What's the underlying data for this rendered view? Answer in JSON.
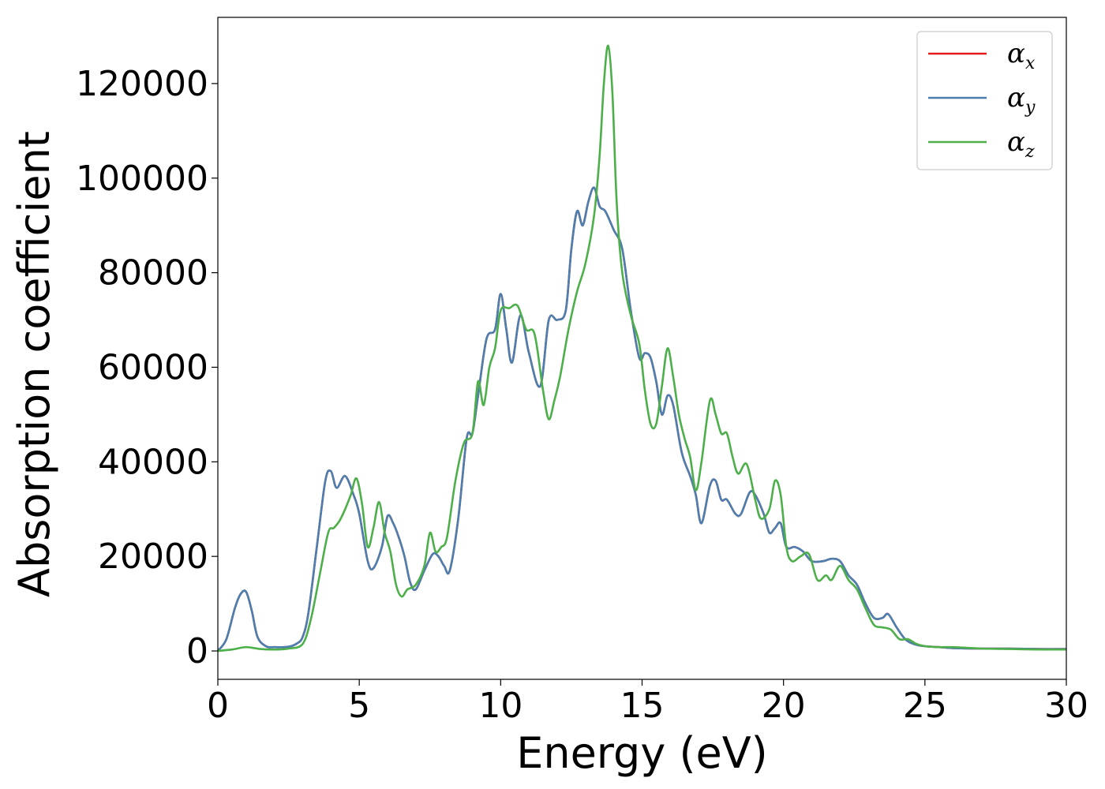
{
  "chart_data": {
    "type": "line",
    "title": "",
    "xlabel": "Energy (eV)",
    "ylabel": "Absorption coefficient",
    "xlim": [
      0,
      30
    ],
    "ylim": [
      -6000,
      134000
    ],
    "xticks": [
      0,
      5,
      10,
      15,
      20,
      25,
      30
    ],
    "yticks": [
      0,
      20000,
      40000,
      60000,
      80000,
      100000,
      120000
    ],
    "grid": false,
    "legend": {
      "placement": "top-right"
    },
    "series": [
      {
        "name": "αx",
        "symbol": "α",
        "subscript": "x",
        "color": "#e41a1c",
        "x": [
          0,
          0.3,
          0.6,
          0.8,
          1.0,
          1.2,
          1.4,
          1.7,
          2.0,
          2.5,
          2.8,
          3.0,
          3.2,
          3.5,
          3.8,
          4.0,
          4.2,
          4.5,
          4.8,
          5.0,
          5.3,
          5.5,
          5.8,
          6.0,
          6.2,
          6.4,
          6.6,
          6.8,
          7.0,
          7.3,
          7.6,
          7.8,
          8.0,
          8.2,
          8.5,
          8.8,
          9.0,
          9.2,
          9.5,
          9.8,
          10.0,
          10.2,
          10.4,
          10.7,
          11.0,
          11.4,
          11.7,
          12.0,
          12.3,
          12.5,
          12.7,
          12.9,
          13.1,
          13.3,
          13.5,
          13.7,
          14.0,
          14.3,
          14.6,
          14.9,
          15.1,
          15.3,
          15.5,
          15.7,
          15.9,
          16.1,
          16.4,
          16.7,
          16.9,
          17.1,
          17.4,
          17.6,
          17.8,
          18.0,
          18.3,
          18.5,
          18.8,
          19.0,
          19.3,
          19.5,
          19.7,
          19.9,
          20.1,
          20.4,
          20.7,
          21.0,
          21.4,
          21.7,
          22.0,
          22.3,
          22.6,
          22.9,
          23.2,
          23.5,
          23.7,
          24.0,
          24.3,
          24.6,
          25.0,
          25.5,
          26.0,
          27.0,
          28.0,
          29.0,
          30.0
        ],
        "y": [
          0,
          2500,
          9000,
          12000,
          12500,
          8500,
          3000,
          1000,
          800,
          900,
          1600,
          3000,
          8000,
          22000,
          36000,
          38000,
          34500,
          37000,
          33000,
          29000,
          19000,
          17500,
          22000,
          28500,
          27000,
          24000,
          20000,
          14500,
          13000,
          17000,
          20500,
          20000,
          18000,
          17000,
          28000,
          45000,
          46000,
          54000,
          66000,
          68000,
          75500,
          68000,
          61000,
          71000,
          63000,
          56000,
          70000,
          70000,
          72000,
          85000,
          93000,
          90000,
          95000,
          98000,
          94000,
          93000,
          89000,
          85000,
          72000,
          62000,
          63000,
          62000,
          57000,
          50000,
          54000,
          52000,
          42000,
          37000,
          33000,
          27000,
          35000,
          36000,
          32000,
          32000,
          29000,
          29000,
          33500,
          33000,
          29000,
          25000,
          26000,
          27000,
          22000,
          22000,
          21000,
          19000,
          19000,
          19500,
          19000,
          16000,
          14000,
          10000,
          7000,
          7000,
          7800,
          5000,
          2500,
          1500,
          1000,
          800,
          600,
          500,
          500,
          400,
          400
        ]
      },
      {
        "name": "αy",
        "symbol": "α",
        "subscript": "y",
        "color": "#4a7fb0",
        "x": [
          0,
          0.3,
          0.6,
          0.8,
          1.0,
          1.2,
          1.4,
          1.7,
          2.0,
          2.5,
          2.8,
          3.0,
          3.2,
          3.5,
          3.8,
          4.0,
          4.2,
          4.5,
          4.8,
          5.0,
          5.3,
          5.5,
          5.8,
          6.0,
          6.2,
          6.4,
          6.6,
          6.8,
          7.0,
          7.3,
          7.6,
          7.8,
          8.0,
          8.2,
          8.5,
          8.8,
          9.0,
          9.2,
          9.5,
          9.8,
          10.0,
          10.2,
          10.4,
          10.7,
          11.0,
          11.4,
          11.7,
          12.0,
          12.3,
          12.5,
          12.7,
          12.9,
          13.1,
          13.3,
          13.5,
          13.7,
          14.0,
          14.3,
          14.6,
          14.9,
          15.1,
          15.3,
          15.5,
          15.7,
          15.9,
          16.1,
          16.4,
          16.7,
          16.9,
          17.1,
          17.4,
          17.6,
          17.8,
          18.0,
          18.3,
          18.5,
          18.8,
          19.0,
          19.3,
          19.5,
          19.7,
          19.9,
          20.1,
          20.4,
          20.7,
          21.0,
          21.4,
          21.7,
          22.0,
          22.3,
          22.6,
          22.9,
          23.2,
          23.5,
          23.7,
          24.0,
          24.3,
          24.6,
          25.0,
          25.5,
          26.0,
          27.0,
          28.0,
          29.0,
          30.0
        ],
        "y": [
          0,
          2500,
          9000,
          12000,
          12500,
          8500,
          3000,
          1000,
          800,
          900,
          1600,
          3000,
          8000,
          22000,
          36000,
          38000,
          34500,
          37000,
          33000,
          29000,
          19000,
          17500,
          22000,
          28500,
          27000,
          24000,
          20000,
          14500,
          13000,
          17000,
          20500,
          20000,
          18000,
          17000,
          28000,
          45000,
          46000,
          54000,
          66000,
          68000,
          75500,
          68000,
          61000,
          71000,
          63000,
          56000,
          70000,
          70000,
          72000,
          85000,
          93000,
          90000,
          95000,
          98000,
          94000,
          93000,
          89000,
          85000,
          72000,
          62000,
          63000,
          62000,
          57000,
          50000,
          54000,
          52000,
          42000,
          37000,
          33000,
          27000,
          35000,
          36000,
          32000,
          32000,
          29000,
          29000,
          33500,
          33000,
          29000,
          25000,
          26000,
          27000,
          22000,
          22000,
          21000,
          19000,
          19000,
          19500,
          19000,
          16000,
          14000,
          10000,
          7000,
          7000,
          7800,
          5000,
          2500,
          1500,
          1000,
          800,
          600,
          500,
          500,
          400,
          400
        ]
      },
      {
        "name": "αz",
        "symbol": "α",
        "subscript": "z",
        "color": "#4daf4a",
        "x": [
          0,
          0.5,
          1.0,
          1.5,
          2.0,
          2.5,
          3.0,
          3.3,
          3.6,
          3.9,
          4.1,
          4.3,
          4.5,
          4.7,
          4.9,
          5.1,
          5.3,
          5.5,
          5.7,
          5.9,
          6.1,
          6.3,
          6.5,
          6.7,
          7.0,
          7.3,
          7.5,
          7.7,
          7.9,
          8.1,
          8.4,
          8.7,
          9.0,
          9.2,
          9.4,
          9.6,
          9.8,
          10.0,
          10.3,
          10.6,
          10.9,
          11.2,
          11.5,
          11.7,
          11.9,
          12.1,
          12.4,
          12.7,
          13.0,
          13.3,
          13.5,
          13.65,
          13.8,
          13.95,
          14.1,
          14.3,
          14.6,
          14.9,
          15.1,
          15.3,
          15.5,
          15.7,
          15.9,
          16.1,
          16.3,
          16.5,
          16.7,
          16.9,
          17.1,
          17.4,
          17.6,
          17.8,
          18.0,
          18.2,
          18.4,
          18.7,
          19.0,
          19.2,
          19.5,
          19.7,
          19.9,
          20.1,
          20.3,
          20.6,
          20.9,
          21.2,
          21.5,
          21.7,
          22.0,
          22.3,
          22.6,
          22.9,
          23.2,
          23.5,
          23.8,
          24.1,
          24.4,
          24.7,
          25.0,
          25.5,
          26.0,
          27.0,
          28.0,
          29.0,
          30.0
        ],
        "y": [
          0,
          300,
          800,
          400,
          300,
          500,
          1500,
          7000,
          16000,
          25000,
          26000,
          27500,
          30000,
          33000,
          36500,
          31000,
          22000,
          26000,
          31500,
          25000,
          21000,
          14000,
          11500,
          13000,
          14000,
          18000,
          25000,
          21000,
          22000,
          24000,
          36000,
          44000,
          46000,
          57000,
          52000,
          60000,
          64000,
          72000,
          72500,
          73000,
          68000,
          67000,
          55000,
          49000,
          53000,
          58000,
          68000,
          76000,
          82000,
          92000,
          105000,
          120000,
          128000,
          118000,
          95000,
          80000,
          71000,
          65000,
          55000,
          48000,
          48000,
          56000,
          64000,
          58000,
          50000,
          45000,
          41000,
          34000,
          40000,
          53000,
          50000,
          46000,
          46000,
          41000,
          37500,
          39500,
          32000,
          28000,
          30000,
          36000,
          33000,
          22000,
          19000,
          20000,
          20500,
          15000,
          16000,
          15000,
          18000,
          15000,
          13000,
          9000,
          5500,
          5000,
          4500,
          2500,
          2500,
          1500,
          1000,
          800,
          800,
          500,
          400,
          300,
          300
        ]
      }
    ]
  }
}
